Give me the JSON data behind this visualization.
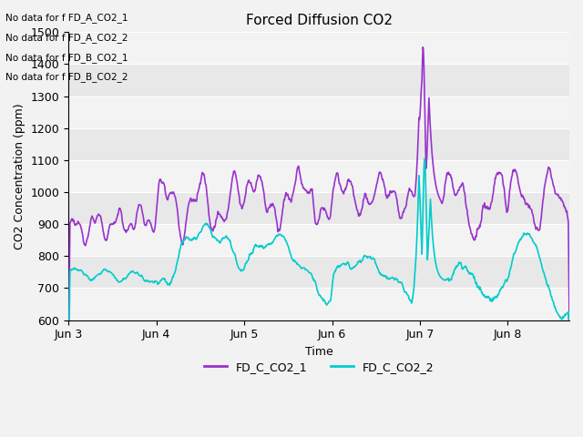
{
  "title": "Forced Diffusion CO2",
  "ylabel": "CO2 Concentration (ppm)",
  "xlabel": "Time",
  "ylim": [
    600,
    1500
  ],
  "xlim_days": [
    0,
    5.7
  ],
  "tick_labels": [
    "Jun 3",
    "Jun 4",
    "Jun 5",
    "Jun 6",
    "Jun 7",
    "Jun 8"
  ],
  "tick_positions": [
    0,
    1,
    2,
    3,
    4,
    5
  ],
  "color_line1": "#9933CC",
  "color_line2": "#00CCCC",
  "legend_labels": [
    "FD_C_CO2_1",
    "FD_C_CO2_2"
  ],
  "no_data_labels": [
    "No data for f FD_A_CO2_1",
    "No data for f FD_A_CO2_2",
    "No data for f FD_B_CO2_1",
    "No data for f FD_B_CO2_2"
  ],
  "bg_color": "#E8E8E8",
  "fig_bg": "#F2F2F2",
  "lw": 1.2,
  "band_colors": [
    "#DCDCDC",
    "#E8E8E8"
  ]
}
